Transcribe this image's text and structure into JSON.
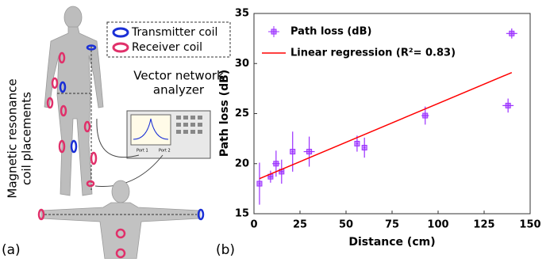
{
  "illustration": {
    "legend": [
      "Transmitter coil",
      "Receiver coil"
    ],
    "analyzer_lines": [
      "Vector network",
      "analyzer"
    ],
    "port_labels": [
      "Port 1",
      "Port 2"
    ],
    "side_label_lines": [
      "Magnetic resonance",
      "coil placements"
    ],
    "panel_label": "(a)"
  },
  "chart_data": {
    "type": "scatter",
    "panel_label": "(b)",
    "x_label": "Distance (cm)",
    "y_label": "Path loss (dB)",
    "xlim": [
      0,
      150
    ],
    "xticks": [
      0,
      25,
      50,
      75,
      100,
      125,
      150
    ],
    "ylim": [
      15,
      35
    ],
    "yticks": [
      15,
      20,
      25,
      30,
      35
    ],
    "legend": "upper left",
    "series": [
      {
        "name": "Path loss (dB)",
        "color": "#9b30ff",
        "x": [
          3,
          9,
          12,
          15,
          21,
          30,
          56,
          60,
          93,
          138,
          140
        ],
        "values": [
          18,
          18.7,
          20,
          19.2,
          21.2,
          21.2,
          22,
          21.6,
          24.8,
          25.8,
          33
        ],
        "x_err": [
          0.5,
          1.5,
          2,
          1,
          0.5,
          3,
          0.5,
          0.5,
          2,
          3,
          3
        ],
        "y_err": [
          2.1,
          0.6,
          1.3,
          1.2,
          2,
          1.5,
          0.8,
          1,
          0.9,
          0.7,
          0.5
        ]
      },
      {
        "name": "Linear regression (R²= 0.83)",
        "color": "#ff0000",
        "type": "line",
        "x": [
          3,
          140
        ],
        "values": [
          18.5,
          29.1
        ]
      }
    ]
  }
}
